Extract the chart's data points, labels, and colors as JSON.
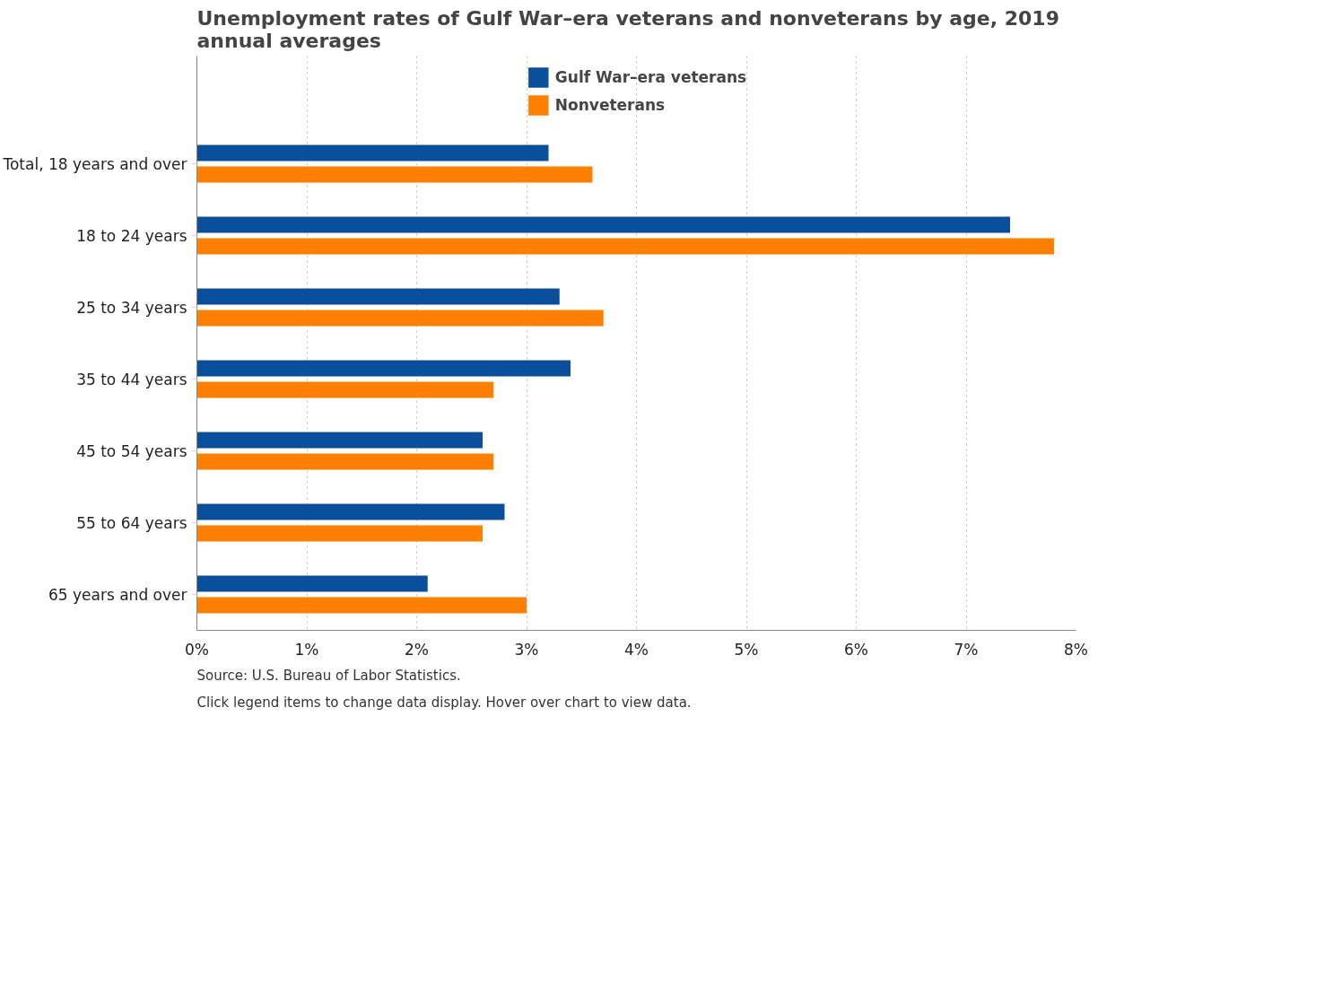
{
  "chart_data": {
    "type": "bar",
    "orientation": "horizontal",
    "title": "Unemployment rates of Gulf War–era veterans and nonveterans by age, 2019 annual averages",
    "categories": [
      "Total, 18 years and over",
      "18 to 24 years",
      "25 to 34 years",
      "35 to 44 years",
      "45 to 54 years",
      "55 to 64 years",
      "65 years and over"
    ],
    "series": [
      {
        "name": "Gulf War–era veterans",
        "color": "#0b4f9c",
        "values": [
          3.2,
          7.4,
          3.3,
          3.4,
          2.6,
          2.8,
          2.1
        ]
      },
      {
        "name": "Nonveterans",
        "color": "#ff8000",
        "values": [
          3.6,
          7.8,
          3.7,
          2.7,
          2.7,
          2.6,
          3.0
        ]
      }
    ],
    "xlim": [
      0,
      8
    ],
    "xticks": [
      {
        "value": 0,
        "label": "0%"
      },
      {
        "value": 1,
        "label": "1%"
      },
      {
        "value": 2,
        "label": "2%"
      },
      {
        "value": 3,
        "label": "3%"
      },
      {
        "value": 4,
        "label": "4%"
      },
      {
        "value": 5,
        "label": "5%"
      },
      {
        "value": 6,
        "label": "6%"
      },
      {
        "value": 7,
        "label": "7%"
      },
      {
        "value": 8,
        "label": "8%"
      }
    ],
    "grid": "x",
    "legend": "top",
    "annotations": [
      "Click legend items to change data display. Hover over chart to view data.",
      "Source: U.S. Bureau of Labor Statistics."
    ]
  }
}
